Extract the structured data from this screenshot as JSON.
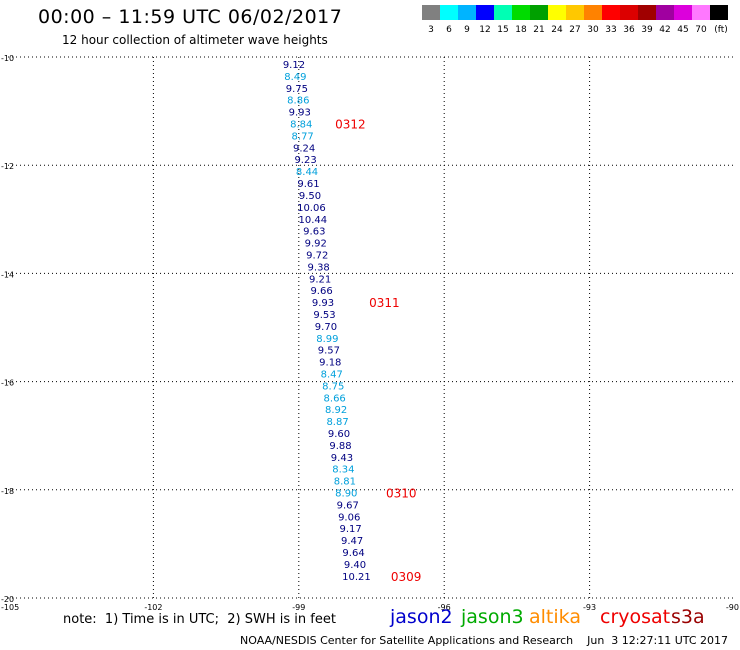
{
  "title": "00:00 – 11:59 UTC 06/02/2017",
  "subtitle": "12 hour collection of altimeter wave heights",
  "colorbar": {
    "colors": [
      "#808080",
      "#00ffff",
      "#00b4ff",
      "#0000ff",
      "#00ffb4",
      "#00dc00",
      "#00a000",
      "#ffff00",
      "#ffc800",
      "#ff8200",
      "#ff0000",
      "#dc0000",
      "#a00000",
      "#a000a0",
      "#dc00dc",
      "#ff78ff",
      "#000000"
    ],
    "labels": [
      "3",
      "6",
      "9",
      "12",
      "15",
      "18",
      "21",
      "24",
      "27",
      "30",
      "33",
      "36",
      "39",
      "42",
      "45",
      "70",
      "(ft)"
    ]
  },
  "legend": [
    {
      "name": "jason2",
      "color": "#0000cc"
    },
    {
      "name": "jason3",
      "color": "#00aa00"
    },
    {
      "name": "altika",
      "color": "#ff8c00"
    },
    {
      "name": "cryosat",
      "color": "#ee0000"
    },
    {
      "name": "s3a",
      "color": "#990000"
    }
  ],
  "note": "note:  1) Time is in UTC;  2) SWH is in feet",
  "credit": "NOAA/NESDIS Center for Satellite Applications and Research    Jun  3 12:27:11 UTC 2017",
  "chart_data": {
    "type": "scatter",
    "xlim": [
      -105,
      -90
    ],
    "ylim": [
      -20,
      -10
    ],
    "xticks": [
      -105,
      -102,
      -99,
      -96,
      -93,
      -90
    ],
    "yticks": [
      -10,
      -12,
      -14,
      -16,
      -18,
      -20
    ],
    "grid": true,
    "series": [
      {
        "name": "jason2",
        "points": [
          {
            "x": -99.1,
            "y": -10.13,
            "v": "9.12",
            "color": "#000080"
          },
          {
            "x": -99.07,
            "y": -10.35,
            "v": "8.49",
            "color": "#00a0dc"
          },
          {
            "x": -99.04,
            "y": -10.57,
            "v": "9.75",
            "color": "#000080"
          },
          {
            "x": -99.01,
            "y": -10.79,
            "v": "8.86",
            "color": "#00a0dc"
          },
          {
            "x": -98.98,
            "y": -11.01,
            "v": "9.93",
            "color": "#000080"
          },
          {
            "x": -98.95,
            "y": -11.23,
            "v": "8.84",
            "color": "#00a0dc"
          },
          {
            "x": -98.92,
            "y": -11.45,
            "v": "8.77",
            "color": "#00a0dc"
          },
          {
            "x": -98.89,
            "y": -11.67,
            "v": "9.24",
            "color": "#000080"
          },
          {
            "x": -98.86,
            "y": -11.89,
            "v": "9.23",
            "color": "#000080"
          },
          {
            "x": -98.83,
            "y": -12.11,
            "v": "8.44",
            "color": "#00a0dc"
          },
          {
            "x": -98.8,
            "y": -12.33,
            "v": "9.61",
            "color": "#000080"
          },
          {
            "x": -98.77,
            "y": -12.55,
            "v": "9.50",
            "color": "#000080"
          },
          {
            "x": -98.74,
            "y": -12.77,
            "v": "10.06",
            "color": "#000080"
          },
          {
            "x": -98.71,
            "y": -12.99,
            "v": "10.44",
            "color": "#000080"
          },
          {
            "x": -98.68,
            "y": -13.21,
            "v": "9.63",
            "color": "#000080"
          },
          {
            "x": -98.65,
            "y": -13.43,
            "v": "9.92",
            "color": "#000080"
          },
          {
            "x": -98.62,
            "y": -13.65,
            "v": "9.72",
            "color": "#000080"
          },
          {
            "x": -98.59,
            "y": -13.87,
            "v": "9.38",
            "color": "#000080"
          },
          {
            "x": -98.56,
            "y": -14.09,
            "v": "9.21",
            "color": "#000080"
          },
          {
            "x": -98.53,
            "y": -14.31,
            "v": "9.66",
            "color": "#000080"
          },
          {
            "x": -98.5,
            "y": -14.53,
            "v": "9.93",
            "color": "#000080"
          },
          {
            "x": -98.47,
            "y": -14.75,
            "v": "9.53",
            "color": "#000080"
          },
          {
            "x": -98.44,
            "y": -14.97,
            "v": "9.70",
            "color": "#000080"
          },
          {
            "x": -98.41,
            "y": -15.19,
            "v": "8.99",
            "color": "#00a0dc"
          },
          {
            "x": -98.38,
            "y": -15.41,
            "v": "9.57",
            "color": "#000080"
          },
          {
            "x": -98.35,
            "y": -15.63,
            "v": "9.18",
            "color": "#000080"
          },
          {
            "x": -98.32,
            "y": -15.85,
            "v": "8.47",
            "color": "#00a0dc"
          },
          {
            "x": -98.29,
            "y": -16.07,
            "v": "8.75",
            "color": "#00a0dc"
          },
          {
            "x": -98.26,
            "y": -16.29,
            "v": "8.66",
            "color": "#00a0dc"
          },
          {
            "x": -98.23,
            "y": -16.51,
            "v": "8.92",
            "color": "#00a0dc"
          },
          {
            "x": -98.2,
            "y": -16.73,
            "v": "8.87",
            "color": "#00a0dc"
          },
          {
            "x": -98.17,
            "y": -16.95,
            "v": "9.60",
            "color": "#000080"
          },
          {
            "x": -98.14,
            "y": -17.17,
            "v": "9.88",
            "color": "#000080"
          },
          {
            "x": -98.11,
            "y": -17.39,
            "v": "9.43",
            "color": "#000080"
          },
          {
            "x": -98.08,
            "y": -17.61,
            "v": "8.34",
            "color": "#00a0dc"
          },
          {
            "x": -98.05,
            "y": -17.83,
            "v": "8.81",
            "color": "#00a0dc"
          },
          {
            "x": -98.02,
            "y": -18.05,
            "v": "8.90",
            "color": "#00a0dc"
          },
          {
            "x": -97.99,
            "y": -18.27,
            "v": "9.67",
            "color": "#000080"
          },
          {
            "x": -97.96,
            "y": -18.49,
            "v": "9.06",
            "color": "#000080"
          },
          {
            "x": -97.93,
            "y": -18.71,
            "v": "9.17",
            "color": "#000080"
          },
          {
            "x": -97.9,
            "y": -18.93,
            "v": "9.47",
            "color": "#000080"
          },
          {
            "x": -97.87,
            "y": -19.15,
            "v": "9.64",
            "color": "#000080"
          },
          {
            "x": -97.84,
            "y": -19.37,
            "v": "9.40",
            "color": "#000080"
          },
          {
            "x": -97.81,
            "y": -19.59,
            "v": "10.21",
            "color": "#000080"
          }
        ]
      }
    ],
    "time_labels": [
      {
        "text": "0312",
        "x": -98.25,
        "y": -11.23
      },
      {
        "text": "0311",
        "x": -97.55,
        "y": -14.53
      },
      {
        "text": "0310",
        "x": -97.2,
        "y": -18.05
      },
      {
        "text": "0309",
        "x": -97.1,
        "y": -19.59
      }
    ]
  }
}
